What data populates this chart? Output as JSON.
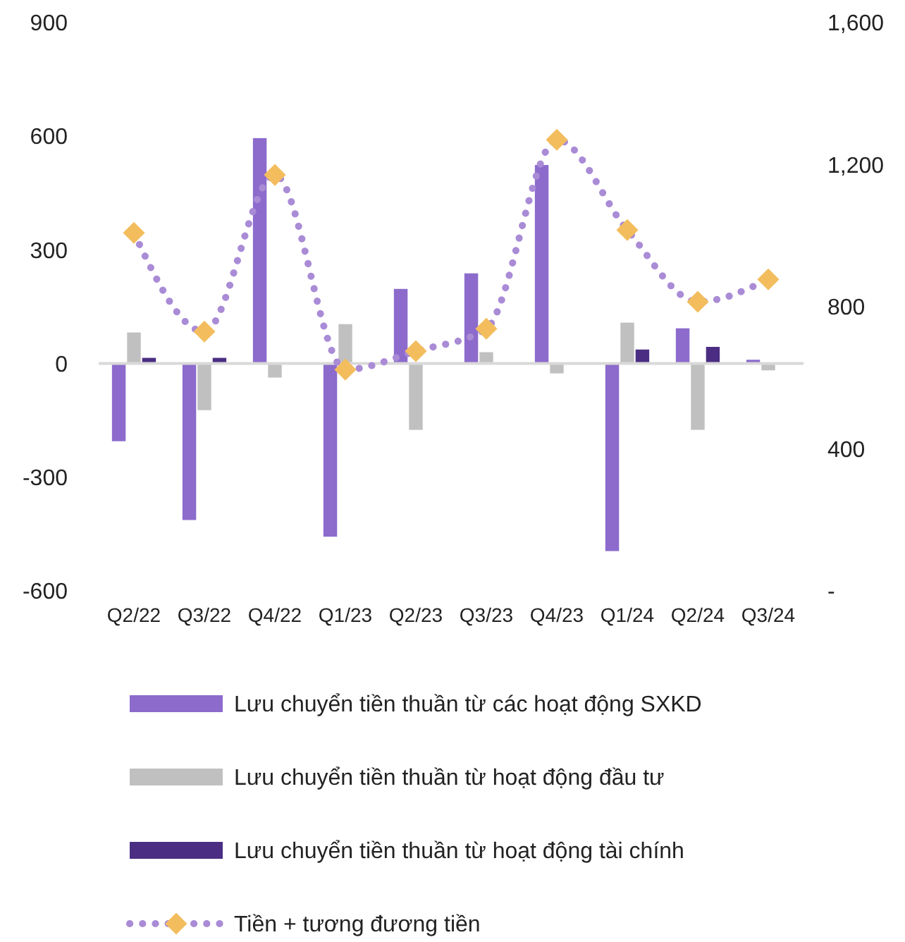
{
  "chart_data": {
    "type": "bar",
    "categories": [
      "Q2/22",
      "Q3/22",
      "Q4/22",
      "Q1/23",
      "Q2/23",
      "Q3/23",
      "Q4/23",
      "Q1/24",
      "Q2/24",
      "Q3/24"
    ],
    "series": [
      {
        "name": "Lưu chuyển tiền thuần từ các hoạt động SXKD",
        "color": "#8c6bcc",
        "values": [
          -205,
          -413,
          595,
          -457,
          197,
          238,
          524,
          -495,
          93,
          10
        ]
      },
      {
        "name": "Lưu chuyển tiền thuần từ hoạt động đầu tư",
        "color": "#c0c0c0",
        "values": [
          82,
          -123,
          -37,
          104,
          -175,
          30,
          -26,
          108,
          -175,
          -18
        ]
      },
      {
        "name": "Lưu chuyển tiền thuần từ hoạt động tài chính",
        "color": "#4b2e83",
        "values": [
          15,
          15,
          0,
          0,
          0,
          0,
          0,
          37,
          44,
          0
        ]
      },
      {
        "name": "Tiền + tương đương tiền",
        "type": "line",
        "axis": "y2",
        "color": "#a98bd6",
        "colors": [
          "#f3bd5e",
          "#f3bd5e",
          "#f3bd5e",
          "#f3bd5e",
          "#f3bd5e",
          "#f3bd5e",
          "#f3bd5e",
          "#f3bd5e",
          "#f3bd5e",
          "#f3bd5e"
        ],
        "marker": "diamond",
        "line_style": "dotted",
        "values": [
          1008,
          730,
          1171,
          623,
          675,
          738,
          1270,
          1016,
          814,
          877
        ]
      }
    ],
    "ylim": [
      -600,
      900
    ],
    "yticks": [
      -600,
      -300,
      0,
      300,
      600,
      900
    ],
    "y2lim": [
      0,
      1600
    ],
    "y2ticks": [
      {
        "value": 0,
        "label": "-"
      },
      400,
      800,
      {
        "value": 1200,
        "label": "1,200"
      },
      {
        "value": 1600,
        "label": "1,600"
      }
    ],
    "legend": "bottom"
  }
}
